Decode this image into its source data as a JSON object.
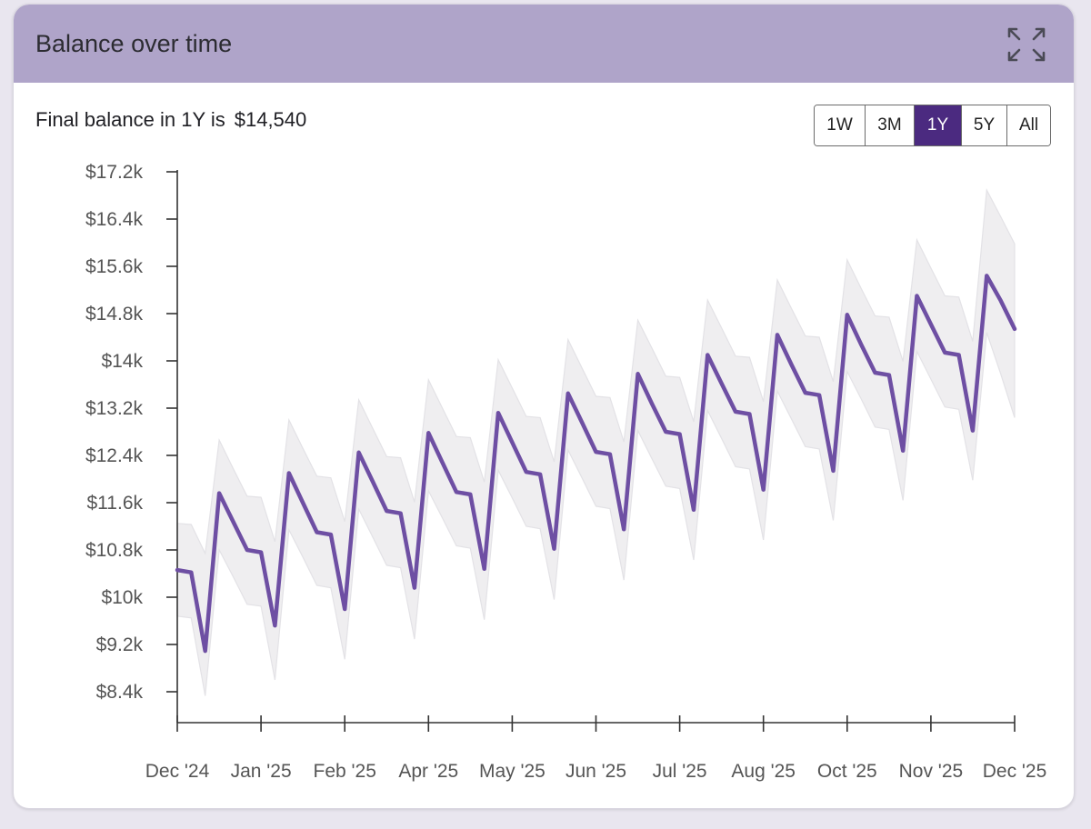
{
  "header": {
    "title": "Balance over time",
    "expand_icon": "expand-arrows-icon"
  },
  "summary": {
    "prefix": "Final balance in 1Y is",
    "amount": "$14,540"
  },
  "range_buttons": [
    {
      "label": "1W",
      "active": false
    },
    {
      "label": "3M",
      "active": false
    },
    {
      "label": "1Y",
      "active": true
    },
    {
      "label": "5Y",
      "active": false
    },
    {
      "label": "All",
      "active": false
    }
  ],
  "colors": {
    "header": "#afa4c9",
    "line": "#6e4fa3",
    "band": "#efeef0",
    "band_stroke": "#e3e2e6",
    "active_button": "#4b2a80"
  },
  "chart_data": {
    "type": "line",
    "y_ticks": [
      "$17.2k",
      "$16.4k",
      "$15.6k",
      "$14.8k",
      "$14k",
      "$13.2k",
      "$12.4k",
      "$11.6k",
      "$10.8k",
      "$10k",
      "$9.2k",
      "$8.4k"
    ],
    "x_ticks": [
      "Dec '24",
      "Jan '25",
      "Feb '25",
      "Apr '25",
      "May '25",
      "Jun '25",
      "Jul '25",
      "Aug '25",
      "Oct '25",
      "Nov '25",
      "Dec '25"
    ],
    "ylim": [
      8400,
      17200
    ],
    "xlim": [
      0,
      60
    ],
    "series": [
      {
        "values": [
          [
            0,
            10460
          ],
          [
            1,
            10420
          ],
          [
            2,
            9090
          ],
          [
            3,
            11760
          ],
          [
            4,
            11280
          ],
          [
            5,
            10800
          ],
          [
            6,
            10760
          ],
          [
            7,
            9520
          ],
          [
            8,
            12100
          ],
          [
            9,
            11600
          ],
          [
            10,
            11100
          ],
          [
            11,
            11060
          ],
          [
            12,
            9800
          ],
          [
            13,
            12450
          ],
          [
            14,
            11960
          ],
          [
            15,
            11460
          ],
          [
            16,
            11420
          ],
          [
            17,
            10160
          ],
          [
            18,
            12780
          ],
          [
            19,
            12280
          ],
          [
            20,
            11780
          ],
          [
            21,
            11740
          ],
          [
            22,
            10480
          ],
          [
            23,
            13120
          ],
          [
            24,
            12620
          ],
          [
            25,
            12120
          ],
          [
            26,
            12080
          ],
          [
            27,
            10820
          ],
          [
            28,
            13450
          ],
          [
            29,
            12960
          ],
          [
            30,
            12460
          ],
          [
            31,
            12420
          ],
          [
            32,
            11150
          ],
          [
            33,
            13780
          ],
          [
            34,
            13280
          ],
          [
            35,
            12800
          ],
          [
            36,
            12760
          ],
          [
            37,
            11480
          ],
          [
            38,
            14100
          ],
          [
            39,
            13620
          ],
          [
            40,
            13140
          ],
          [
            41,
            13100
          ],
          [
            42,
            11820
          ],
          [
            43,
            14440
          ],
          [
            44,
            13940
          ],
          [
            45,
            13460
          ],
          [
            46,
            13420
          ],
          [
            47,
            12140
          ],
          [
            48,
            14780
          ],
          [
            49,
            14280
          ],
          [
            50,
            13800
          ],
          [
            51,
            13760
          ],
          [
            52,
            12480
          ],
          [
            53,
            15100
          ],
          [
            54,
            14620
          ],
          [
            55,
            14140
          ],
          [
            56,
            14100
          ],
          [
            57,
            12820
          ],
          [
            58,
            15440
          ],
          [
            59,
            15020
          ],
          [
            60,
            14540
          ]
        ]
      }
    ],
    "band": {
      "upper": [
        11250,
        11230,
        10740,
        12660,
        12180,
        11710,
        11690,
        10940,
        13000,
        12520,
        12050,
        12020,
        11280,
        13340,
        12860,
        12380,
        12360,
        11610,
        13680,
        13200,
        12720,
        12700,
        11950,
        14020,
        13540,
        13060,
        13040,
        12290,
        14360,
        13880,
        13400,
        13380,
        12630,
        14690,
        14220,
        13740,
        13720,
        12970,
        15030,
        14560,
        14080,
        14060,
        13310,
        15370,
        14890,
        14420,
        14400,
        13650,
        15710,
        15230,
        14760,
        14740,
        13990,
        16050,
        15570,
        15100,
        15080,
        14330,
        16890,
        16440,
        15980
      ],
      "lower": [
        9680,
        9650,
        8330,
        10800,
        10350,
        9880,
        9850,
        8600,
        11140,
        10680,
        10200,
        10160,
        8950,
        11490,
        11020,
        10540,
        10500,
        9290,
        11800,
        11340,
        10870,
        10830,
        9620,
        12150,
        11680,
        11200,
        11160,
        9960,
        12490,
        12020,
        11540,
        11500,
        10290,
        12820,
        12350,
        11880,
        11840,
        10630,
        13160,
        12690,
        12210,
        12170,
        10970,
        13490,
        13020,
        12550,
        12510,
        11300,
        13820,
        13360,
        12880,
        12840,
        11640,
        14160,
        13690,
        13220,
        13180,
        11980,
        14480,
        13780,
        13040
      ]
    },
    "grid": false,
    "legend": "none"
  }
}
